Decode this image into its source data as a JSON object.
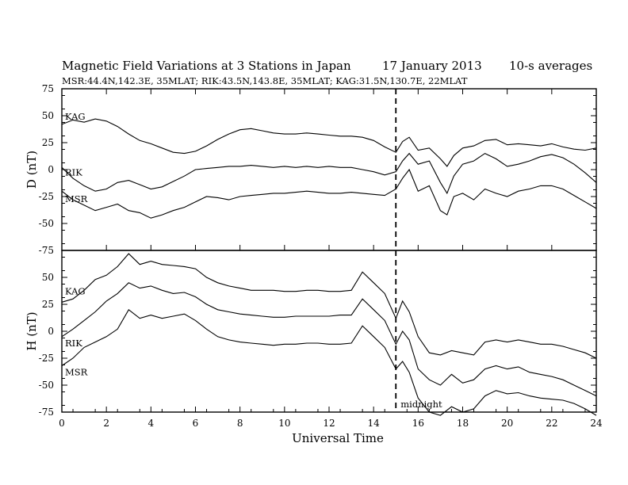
{
  "chart_data": {
    "type": "line",
    "title": "Magnetic Field Variations at 3 Stations in Japan",
    "date": "17 January 2013",
    "averaging": "10-s averages",
    "subtitle": "MSR:44.4N,142.3E, 35MLAT;  RIK:43.5N,143.8E, 35MLAT;  KAG:31.5N,130.7E, 22MLAT",
    "xlabel": "Universal Time",
    "xlim": [
      0,
      24
    ],
    "xticks": [
      "0",
      "2",
      "4",
      "6",
      "8",
      "10",
      "12",
      "14",
      "16",
      "18",
      "20",
      "22",
      "24"
    ],
    "annotation": {
      "text": "midnight",
      "x": 15
    },
    "panels": [
      {
        "ylabel": "D (nT)",
        "ylim": [
          -75,
          75
        ],
        "yticks": [
          "75",
          "50",
          "25",
          "0",
          "-25",
          "-50",
          "-75"
        ],
        "series": [
          {
            "name": "KAG",
            "x": [
              0,
              0.5,
              1,
              1.5,
              2,
              2.5,
              3,
              3.5,
              4,
              4.5,
              5,
              5.5,
              6,
              6.5,
              7,
              7.5,
              8,
              8.5,
              9,
              9.5,
              10,
              10.5,
              11,
              11.5,
              12,
              12.5,
              13,
              13.5,
              14,
              14.5,
              15,
              15.3,
              15.6,
              16,
              16.5,
              17,
              17.3,
              17.6,
              18,
              18.5,
              19,
              19.5,
              20,
              20.5,
              21,
              21.5,
              22,
              22.5,
              23,
              23.5,
              24
            ],
            "y": [
              42,
              46,
              44,
              47,
              45,
              40,
              33,
              27,
              24,
              20,
              16,
              15,
              17,
              22,
              28,
              33,
              37,
              38,
              36,
              34,
              33,
              33,
              34,
              33,
              32,
              31,
              31,
              30,
              27,
              21,
              16,
              26,
              30,
              18,
              20,
              10,
              3,
              13,
              20,
              22,
              27,
              28,
              23,
              24,
              23,
              22,
              24,
              21,
              19,
              18,
              20
            ]
          },
          {
            "name": "RIK",
            "x": [
              0,
              0.5,
              1,
              1.5,
              2,
              2.5,
              3,
              3.5,
              4,
              4.5,
              5,
              5.5,
              6,
              6.5,
              7,
              7.5,
              8,
              8.5,
              9,
              9.5,
              10,
              10.5,
              11,
              11.5,
              12,
              12.5,
              13,
              13.5,
              14,
              14.5,
              15,
              15.3,
              15.6,
              16,
              16.5,
              17,
              17.3,
              17.6,
              18,
              18.5,
              19,
              19.5,
              20,
              20.5,
              21,
              21.5,
              22,
              22.5,
              23,
              23.5,
              24
            ],
            "y": [
              2,
              -8,
              -15,
              -20,
              -18,
              -12,
              -10,
              -14,
              -18,
              -16,
              -11,
              -6,
              0,
              1,
              2,
              3,
              3,
              4,
              3,
              2,
              3,
              2,
              3,
              2,
              3,
              2,
              2,
              0,
              -2,
              -5,
              -2,
              8,
              15,
              5,
              8,
              -12,
              -22,
              -6,
              5,
              8,
              15,
              10,
              3,
              5,
              8,
              12,
              14,
              11,
              5,
              -3,
              -12
            ]
          },
          {
            "name": "MSR",
            "x": [
              0,
              0.5,
              1,
              1.5,
              2,
              2.5,
              3,
              3.5,
              4,
              4.5,
              5,
              5.5,
              6,
              6.5,
              7,
              7.5,
              8,
              8.5,
              9,
              9.5,
              10,
              10.5,
              11,
              11.5,
              12,
              12.5,
              13,
              13.5,
              14,
              14.5,
              15,
              15.3,
              15.6,
              16,
              16.5,
              17,
              17.3,
              17.6,
              18,
              18.5,
              19,
              19.5,
              20,
              20.5,
              21,
              21.5,
              22,
              22.5,
              23,
              23.5,
              24
            ],
            "y": [
              -20,
              -28,
              -33,
              -38,
              -35,
              -32,
              -38,
              -40,
              -45,
              -42,
              -38,
              -35,
              -30,
              -25,
              -26,
              -28,
              -25,
              -24,
              -23,
              -22,
              -22,
              -21,
              -20,
              -21,
              -22,
              -22,
              -21,
              -22,
              -23,
              -24,
              -18,
              -8,
              0,
              -20,
              -15,
              -38,
              -42,
              -25,
              -22,
              -28,
              -18,
              -22,
              -25,
              -20,
              -18,
              -15,
              -15,
              -18,
              -24,
              -30,
              -36
            ]
          }
        ]
      },
      {
        "ylabel": "H (nT)",
        "ylim": [
          -75,
          75
        ],
        "yticks": [
          "75",
          "50",
          "25",
          "0",
          "-25",
          "-50",
          "-75"
        ],
        "series": [
          {
            "name": "KAG",
            "x": [
              0,
              0.5,
              1,
              1.5,
              2,
              2.5,
              3,
              3.5,
              4,
              4.5,
              5,
              5.5,
              6,
              6.5,
              7,
              7.5,
              8,
              8.5,
              9,
              9.5,
              10,
              10.5,
              11,
              11.5,
              12,
              12.5,
              13,
              13.5,
              14,
              14.5,
              15,
              15.3,
              15.6,
              16,
              16.5,
              17,
              17.5,
              18,
              18.5,
              19,
              19.5,
              20,
              20.5,
              21,
              21.5,
              22,
              22.5,
              23,
              23.5,
              24
            ],
            "y": [
              27,
              30,
              38,
              48,
              52,
              60,
              72,
              62,
              65,
              62,
              61,
              60,
              58,
              50,
              45,
              42,
              40,
              38,
              38,
              38,
              37,
              37,
              38,
              38,
              37,
              37,
              38,
              55,
              45,
              35,
              12,
              28,
              18,
              -5,
              -20,
              -22,
              -18,
              -20,
              -22,
              -10,
              -8,
              -10,
              -8,
              -10,
              -12,
              -12,
              -14,
              -17,
              -20,
              -25
            ]
          },
          {
            "name": "RIK",
            "x": [
              0,
              0.5,
              1,
              1.5,
              2,
              2.5,
              3,
              3.5,
              4,
              4.5,
              5,
              5.5,
              6,
              6.5,
              7,
              7.5,
              8,
              8.5,
              9,
              9.5,
              10,
              10.5,
              11,
              11.5,
              12,
              12.5,
              13,
              13.5,
              14,
              14.5,
              15,
              15.3,
              15.6,
              16,
              16.5,
              17,
              17.5,
              18,
              18.5,
              19,
              19.5,
              20,
              20.5,
              21,
              21.5,
              22,
              22.5,
              23,
              23.5,
              24
            ],
            "y": [
              -5,
              2,
              10,
              18,
              28,
              35,
              45,
              40,
              42,
              38,
              35,
              36,
              32,
              25,
              20,
              18,
              16,
              15,
              14,
              13,
              13,
              14,
              14,
              14,
              14,
              15,
              15,
              30,
              20,
              10,
              -12,
              0,
              -8,
              -35,
              -45,
              -50,
              -40,
              -48,
              -45,
              -35,
              -32,
              -35,
              -33,
              -38,
              -40,
              -42,
              -45,
              -50,
              -55,
              -60
            ]
          },
          {
            "name": "MSR",
            "x": [
              0,
              0.5,
              1,
              1.5,
              2,
              2.5,
              3,
              3.5,
              4,
              4.5,
              5,
              5.5,
              6,
              6.5,
              7,
              7.5,
              8,
              8.5,
              9,
              9.5,
              10,
              10.5,
              11,
              11.5,
              12,
              12.5,
              13,
              13.5,
              14,
              14.5,
              15,
              15.3,
              15.6,
              16,
              16.5,
              17,
              17.5,
              18,
              18.5,
              19,
              19.5,
              20,
              20.5,
              21,
              21.5,
              22,
              22.5,
              23,
              23.5,
              24
            ],
            "y": [
              -32,
              -25,
              -15,
              -10,
              -5,
              2,
              20,
              12,
              15,
              12,
              14,
              16,
              10,
              2,
              -5,
              -8,
              -10,
              -11,
              -12,
              -13,
              -12,
              -12,
              -11,
              -11,
              -12,
              -12,
              -11,
              5,
              -5,
              -15,
              -35,
              -28,
              -38,
              -62,
              -75,
              -78,
              -70,
              -75,
              -72,
              -60,
              -55,
              -58,
              -57,
              -60,
              -62,
              -63,
              -64,
              -67,
              -72,
              -78
            ]
          }
        ]
      }
    ]
  }
}
